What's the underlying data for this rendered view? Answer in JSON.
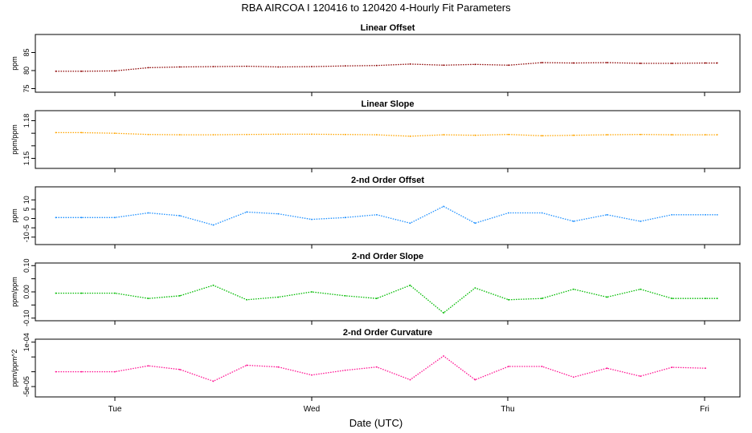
{
  "figure": {
    "title": "RBA   AIRCOA I   120416 to 120420   4-Hourly Fit Parameters",
    "xlabel": "Date (UTC)",
    "day_ticks": [
      "Tue",
      "Wed",
      "Thu",
      "Fri"
    ]
  },
  "chart_data": [
    {
      "type": "line",
      "title": "Linear Offset",
      "ylabel": "ppm",
      "color": "#8b0000",
      "ylim": [
        74,
        90
      ],
      "yticks": [
        75,
        80,
        85
      ],
      "ytick_labels": [
        "75",
        "80",
        "85"
      ],
      "x": [
        -0.3,
        -0.17,
        0.0,
        0.17,
        0.33,
        0.5,
        0.67,
        0.83,
        1.0,
        1.17,
        1.33,
        1.5,
        1.67,
        1.83,
        2.0,
        2.17,
        2.33,
        2.5,
        2.67,
        2.83,
        3.0,
        3.06
      ],
      "y": [
        79.8,
        79.8,
        79.9,
        80.8,
        81.0,
        81.1,
        81.2,
        81.0,
        81.1,
        81.3,
        81.4,
        81.8,
        81.5,
        81.7,
        81.5,
        82.2,
        82.1,
        82.2,
        82.0,
        82.0,
        82.1,
        82.1
      ]
    },
    {
      "type": "line",
      "title": "Linear Slope",
      "ylabel": "ppm/ppm",
      "color": "#ffa500",
      "ylim": [
        1.142,
        1.188
      ],
      "yticks": [
        1.15,
        1.16,
        1.17,
        1.18
      ],
      "ytick_labels": [
        "1.15",
        "",
        "",
        "1.18"
      ],
      "x": [
        -0.3,
        -0.17,
        0.0,
        0.17,
        0.33,
        0.5,
        0.67,
        0.83,
        1.0,
        1.17,
        1.33,
        1.5,
        1.67,
        1.83,
        2.0,
        2.17,
        2.33,
        2.5,
        2.67,
        2.83,
        3.0,
        3.06
      ],
      "y": [
        1.1705,
        1.1705,
        1.17,
        1.169,
        1.1688,
        1.1688,
        1.169,
        1.1692,
        1.1692,
        1.169,
        1.1688,
        1.1676,
        1.1688,
        1.1684,
        1.169,
        1.168,
        1.1684,
        1.1688,
        1.169,
        1.1688,
        1.1688,
        1.1688
      ]
    },
    {
      "type": "line",
      "title": "2-nd Order Offset",
      "ylabel": "ppm",
      "color": "#1e90ff",
      "ylim": [
        -14,
        17
      ],
      "yticks": [
        -10,
        -5,
        0,
        5,
        10
      ],
      "ytick_labels": [
        "-10",
        "-5",
        "0",
        "5",
        "10"
      ],
      "x": [
        -0.3,
        -0.17,
        0.0,
        0.17,
        0.33,
        0.5,
        0.67,
        0.83,
        1.0,
        1.17,
        1.33,
        1.5,
        1.67,
        1.83,
        2.0,
        2.17,
        2.33,
        2.5,
        2.67,
        2.83,
        3.0,
        3.06
      ],
      "y": [
        0.5,
        0.5,
        0.5,
        3.0,
        1.5,
        -3.5,
        3.5,
        2.5,
        -0.5,
        0.5,
        2.0,
        -2.5,
        6.5,
        -2.5,
        3.0,
        3.0,
        -1.5,
        2.0,
        -1.5,
        2.0,
        2.0,
        2.0
      ]
    },
    {
      "type": "line",
      "title": "2-nd Order Slope",
      "ylabel": "ppm/ppm",
      "color": "#00bb00",
      "ylim": [
        -0.11,
        0.11
      ],
      "yticks": [
        -0.1,
        -0.05,
        0.0,
        0.05,
        0.1
      ],
      "ytick_labels": [
        "-0.10",
        "",
        "0.00",
        "",
        "0.10"
      ],
      "x": [
        -0.3,
        -0.17,
        0.0,
        0.17,
        0.33,
        0.5,
        0.67,
        0.83,
        1.0,
        1.17,
        1.33,
        1.5,
        1.67,
        1.83,
        2.0,
        2.17,
        2.33,
        2.5,
        2.67,
        2.83,
        3.0,
        3.06
      ],
      "y": [
        -0.005,
        -0.005,
        -0.005,
        -0.025,
        -0.015,
        0.025,
        -0.03,
        -0.02,
        0.0,
        -0.015,
        -0.025,
        0.025,
        -0.08,
        0.015,
        -0.03,
        -0.025,
        0.01,
        -0.02,
        0.01,
        -0.025,
        -0.025,
        -0.025
      ]
    },
    {
      "type": "line",
      "title": "2-nd Order Curvature",
      "ylabel": "ppm/ppm^2",
      "color": "#ff1493",
      "ylim": [
        -8.5e-05,
        0.00011
      ],
      "yticks": [
        -5e-05,
        0.0,
        5e-05,
        0.0001
      ],
      "ytick_labels": [
        "-5e-05",
        "",
        "",
        "1e-04"
      ],
      "x": [
        -0.3,
        -0.17,
        0.0,
        0.17,
        0.33,
        0.5,
        0.67,
        0.83,
        1.0,
        1.17,
        1.33,
        1.5,
        1.67,
        1.83,
        2.0,
        2.17,
        2.33,
        2.5,
        2.67,
        2.83,
        3.0
      ],
      "y": [
        0.0,
        0.0,
        0.0,
        2e-05,
        7.5e-06,
        -3.2e-05,
        2.2e-05,
        1.6e-05,
        -1.1e-05,
        5e-06,
        1.6e-05,
        -2.7e-05,
        5.3e-05,
        -2.7e-05,
        1.8e-05,
        1.8e-05,
        -1.8e-05,
        1.2e-05,
        -1.5e-05,
        1.5e-05,
        1.2e-05
      ]
    }
  ]
}
